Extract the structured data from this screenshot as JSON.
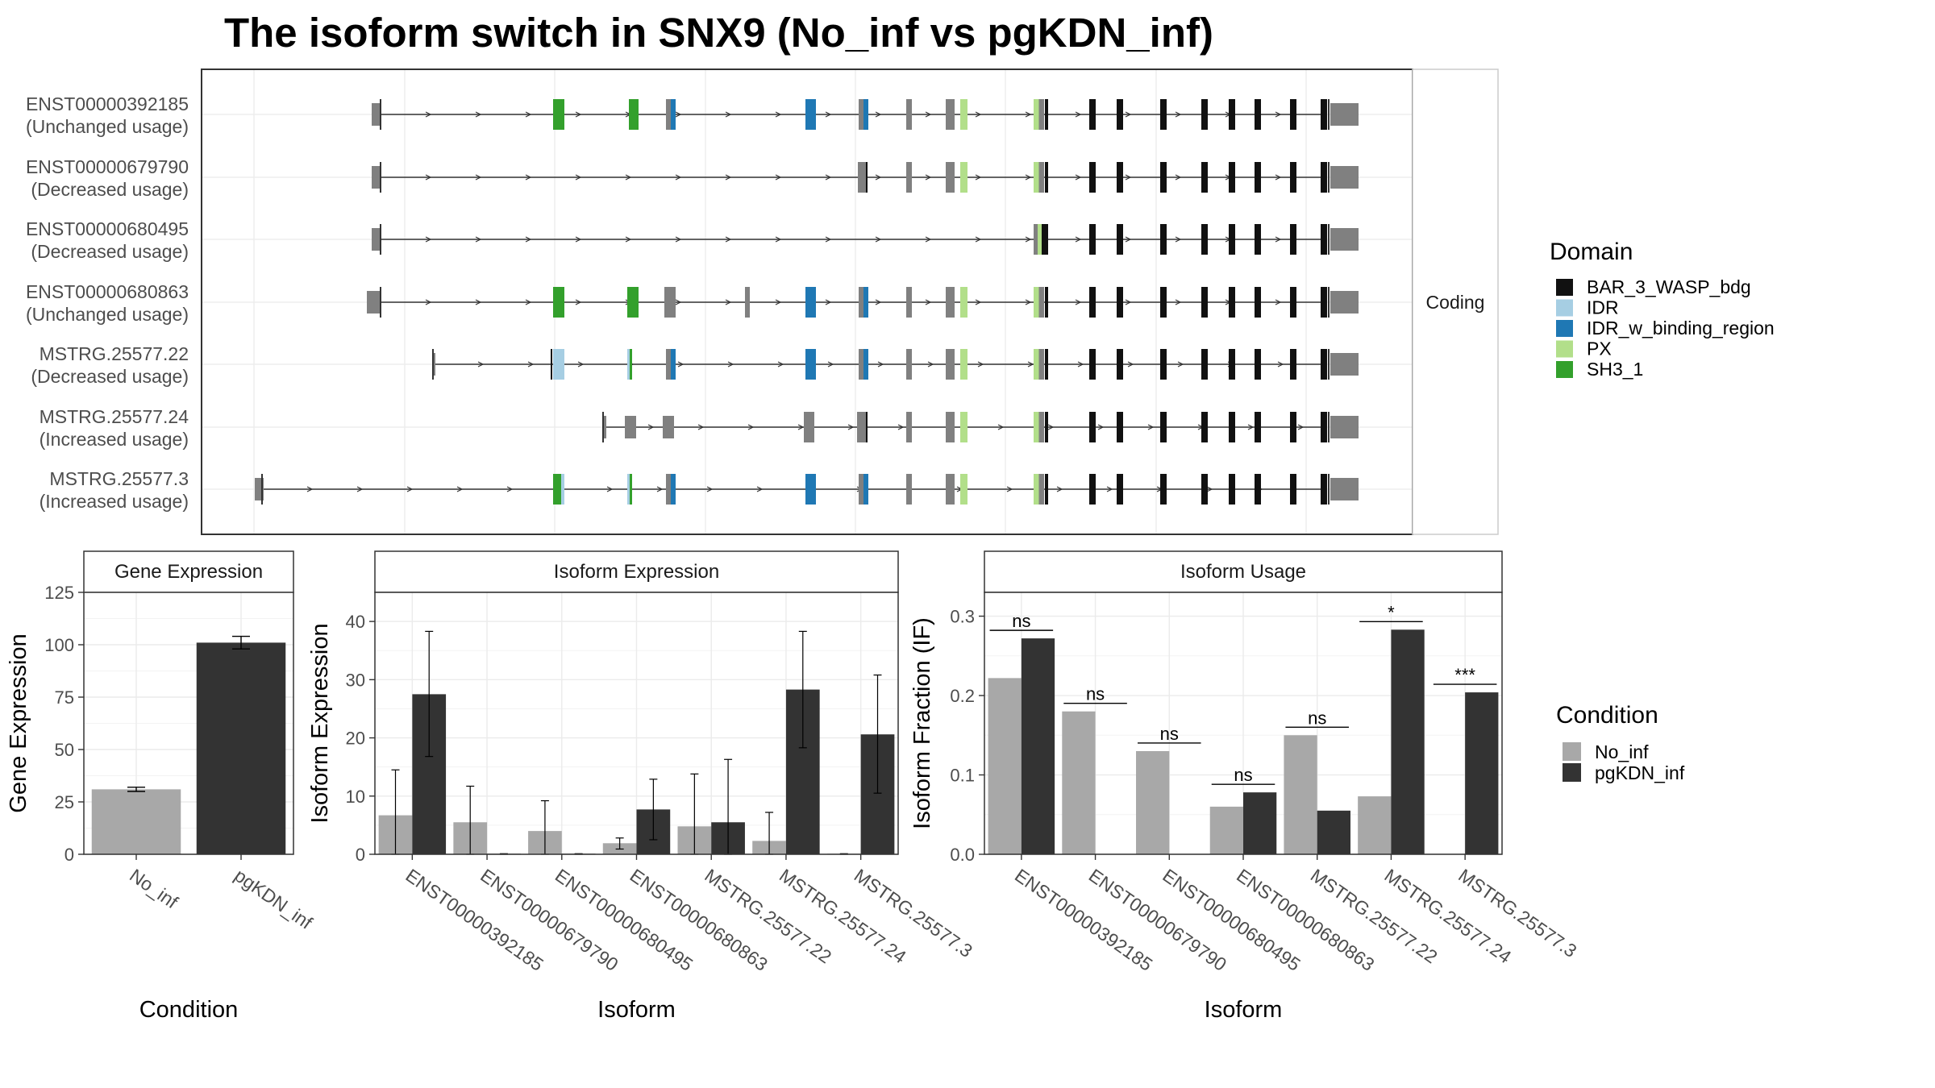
{
  "title": "The isoform switch in SNX9 (No_inf vs pgKDN_inf)",
  "structure": {
    "facet_label": "Coding",
    "isoforms": [
      {
        "name": "ENST00000392185",
        "usage": "(Unchanged usage)"
      },
      {
        "name": "ENST00000679790",
        "usage": "(Decreased usage)"
      },
      {
        "name": "ENST00000680495",
        "usage": "(Decreased usage)"
      },
      {
        "name": "ENST00000680863",
        "usage": "(Unchanged usage)"
      },
      {
        "name": "MSTRG.25577.22",
        "usage": "(Decreased usage)"
      },
      {
        "name": "MSTRG.25577.24",
        "usage": "(Increased usage)"
      },
      {
        "name": "MSTRG.25577.3",
        "usage": "(Increased usage)"
      }
    ]
  },
  "legend_domain": {
    "title": "Domain",
    "items": [
      {
        "label": "BAR_3_WASP_bdg",
        "color": "#111111"
      },
      {
        "label": "IDR",
        "color": "#a6cee3"
      },
      {
        "label": "IDR_w_binding_region",
        "color": "#1f78b4"
      },
      {
        "label": "PX",
        "color": "#b2df8a"
      },
      {
        "label": "SH3_1",
        "color": "#33a02c"
      }
    ]
  },
  "legend_condition": {
    "title": "Condition",
    "items": [
      {
        "label": "No_inf",
        "color": "#a8a8a8"
      },
      {
        "label": "pgKDN_inf",
        "color": "#333333"
      }
    ]
  },
  "chart_data": [
    {
      "type": "bar",
      "title": "Gene Expression",
      "xlabel": "Condition",
      "ylabel": "Gene Expression",
      "ylim": [
        0,
        125
      ],
      "yticks": [
        0,
        25,
        50,
        75,
        100,
        125
      ],
      "categories": [
        "No_inf",
        "pgKDN_inf"
      ],
      "values": [
        31,
        101
      ],
      "errors": [
        [
          30,
          32
        ],
        [
          98,
          104
        ]
      ]
    },
    {
      "type": "bar",
      "title": "Isoform Expression",
      "xlabel": "Isoform",
      "ylabel": "Isoform Expression",
      "ylim": [
        0,
        45
      ],
      "yticks": [
        0,
        10,
        20,
        30,
        40
      ],
      "categories": [
        "ENST00000392185",
        "ENST00000679790",
        "ENST00000680495",
        "ENST00000680863",
        "MSTRG.25577.22",
        "MSTRG.25577.24",
        "MSTRG.25577.3"
      ],
      "series": [
        {
          "values": [
            6.7,
            5.5,
            4.0,
            1.9,
            4.8,
            2.3,
            0.1
          ],
          "errors": [
            [
              0,
              14.5
            ],
            [
              0,
              11.7
            ],
            [
              0,
              9.2
            ],
            [
              0.9,
              2.8
            ],
            [
              0,
              13.8
            ],
            [
              0,
              7.2
            ],
            [
              0,
              0.1
            ]
          ]
        },
        {
          "values": [
            27.5,
            0.1,
            0.1,
            7.7,
            5.5,
            28.3,
            20.6
          ],
          "errors": [
            [
              16.8,
              38.3
            ],
            [
              0,
              0.1
            ],
            [
              0,
              0.1
            ],
            [
              2.5,
              12.9
            ],
            [
              0,
              16.3
            ],
            [
              18.3,
              38.3
            ],
            [
              10.5,
              30.8
            ]
          ]
        }
      ]
    },
    {
      "type": "bar",
      "title": "Isoform Usage",
      "xlabel": "Isoform",
      "ylabel": "Isoform Fraction (IF)",
      "ylim": [
        0,
        0.33
      ],
      "yticks": [
        0.0,
        0.1,
        0.2,
        0.3
      ],
      "categories": [
        "ENST00000392185",
        "ENST00000679790",
        "ENST00000680495",
        "ENST00000680863",
        "MSTRG.25577.22",
        "MSTRG.25577.24",
        "MSTRG.25577.3"
      ],
      "series": [
        {
          "values": [
            0.222,
            0.18,
            0.13,
            0.06,
            0.15,
            0.073,
            0.0
          ]
        },
        {
          "values": [
            0.272,
            0.0,
            0.0,
            0.078,
            0.055,
            0.283,
            0.204
          ]
        }
      ],
      "significance": [
        "ns",
        "ns",
        "ns",
        "ns",
        "ns",
        "*",
        "***"
      ]
    }
  ]
}
